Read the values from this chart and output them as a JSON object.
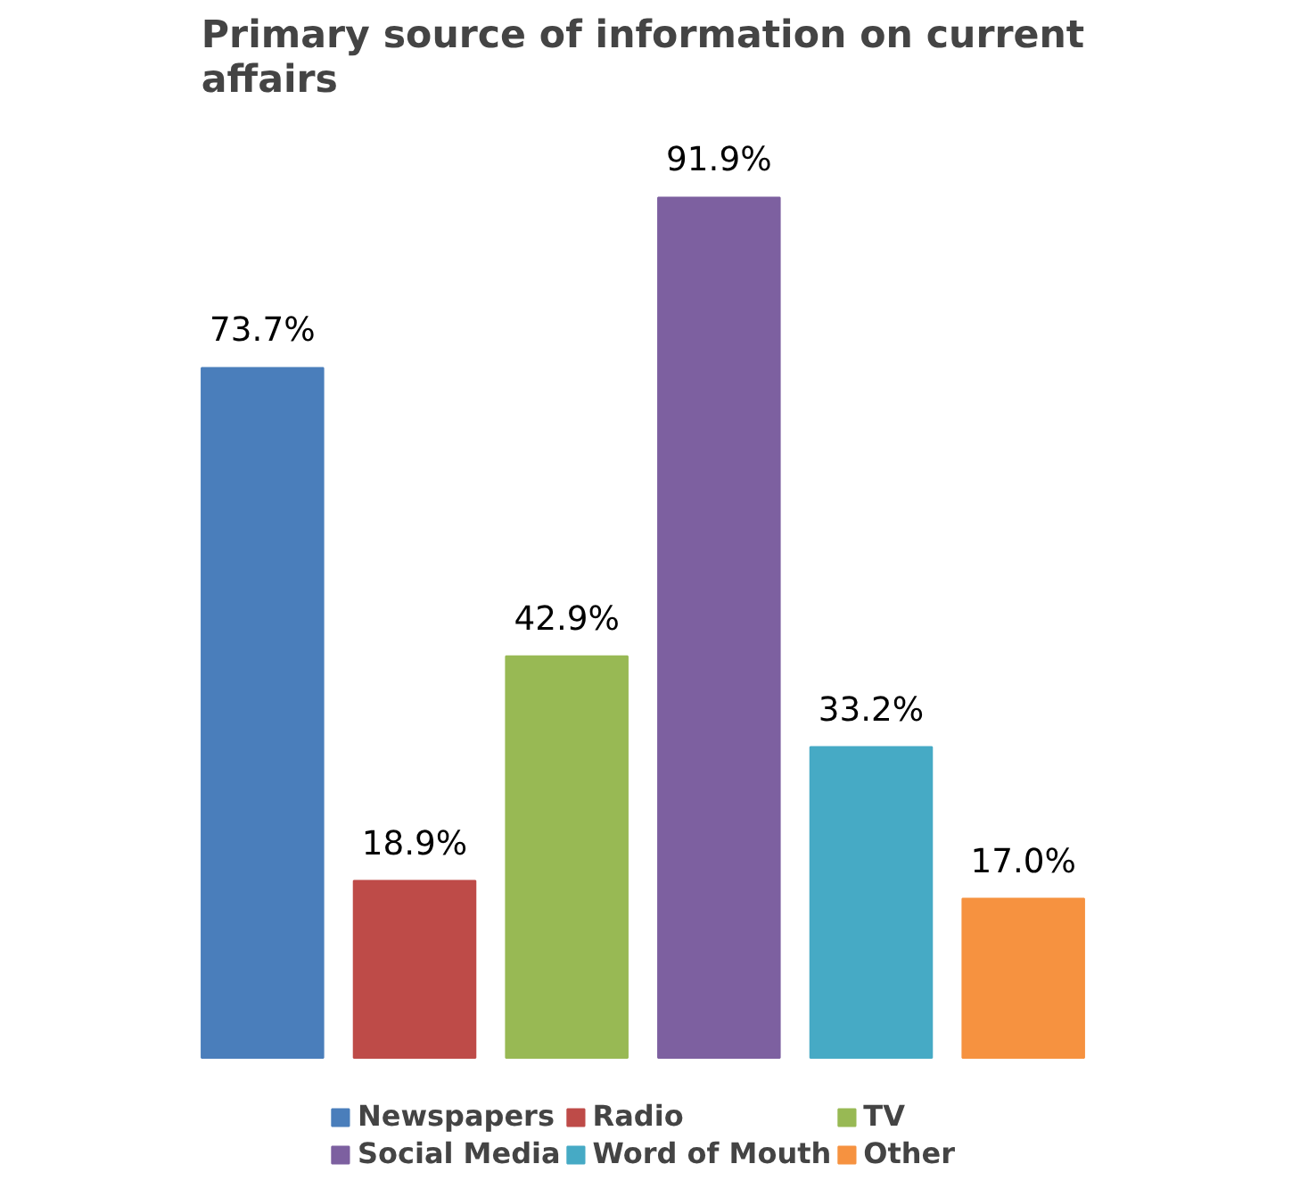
{
  "chart_data": {
    "type": "bar",
    "title": "Primary source of information on current affairs",
    "categories": [
      null
    ],
    "legend": "bottom",
    "series": [
      {
        "name": "Newspapers",
        "color": "#4a7ebb",
        "values": [
          73.7
        ],
        "value_labels": [
          "73.7%"
        ]
      },
      {
        "name": "Radio",
        "color": "#be4b48",
        "values": [
          18.9
        ],
        "value_labels": [
          "18.9%"
        ]
      },
      {
        "name": "TV",
        "color": "#98b954",
        "values": [
          42.9
        ],
        "value_labels": [
          "42.9%"
        ]
      },
      {
        "name": "Social Media",
        "color": "#7d60a0",
        "values": [
          91.9
        ],
        "value_labels": [
          "91.9%"
        ]
      },
      {
        "name": "Word of Mouth",
        "color": "#46aac5",
        "values": [
          33.2
        ],
        "value_labels": [
          "33.2%"
        ]
      },
      {
        "name": "Other",
        "color": "#f69240",
        "values": [
          17.0
        ],
        "value_labels": [
          "17.0%"
        ]
      }
    ]
  }
}
